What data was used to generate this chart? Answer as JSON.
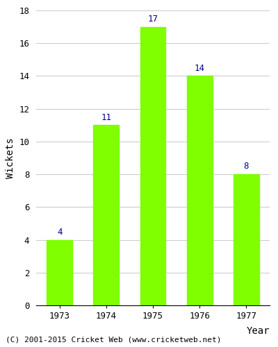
{
  "years": [
    "1973",
    "1974",
    "1975",
    "1976",
    "1977"
  ],
  "values": [
    4,
    11,
    17,
    14,
    8
  ],
  "bar_color": "#7FFF00",
  "bar_edge_color": "#7FFF00",
  "label_color": "#00008B",
  "ylabel": "Wickets",
  "xlabel": "Year",
  "ylim": [
    0,
    18
  ],
  "yticks": [
    0,
    2,
    4,
    6,
    8,
    10,
    12,
    14,
    16,
    18
  ],
  "footnote": "(C) 2001-2015 Cricket Web (www.cricketweb.net)",
  "label_fontsize": 9,
  "axis_label_fontsize": 10,
  "tick_fontsize": 9,
  "footnote_fontsize": 8,
  "grid_color": "#cccccc"
}
